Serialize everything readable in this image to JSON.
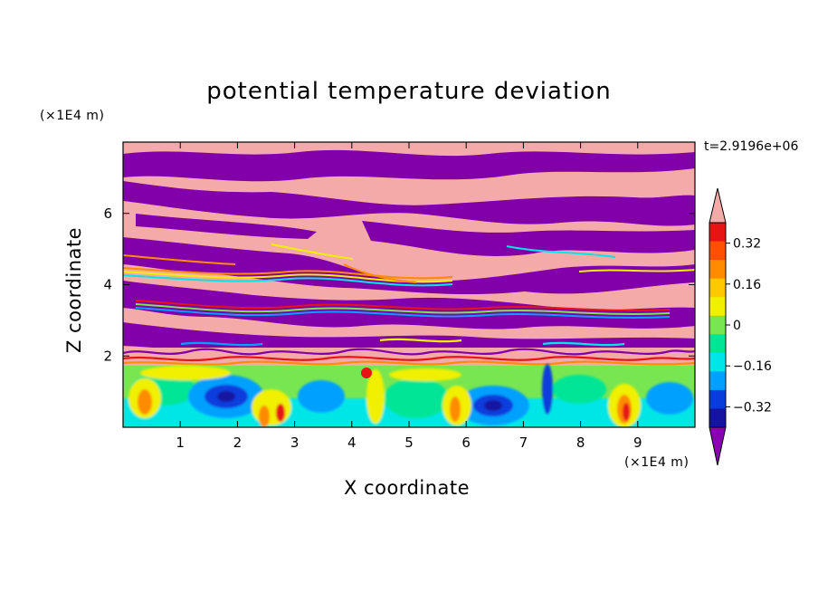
{
  "chart_data": {
    "type": "heatmap",
    "title": "potential temperature deviation",
    "xlabel": "X coordinate",
    "ylabel": "Z coordinate",
    "x_unit": "(×1E4 m)",
    "y_unit": "(×1E4 m)",
    "time_label": "t=2.9196e+06",
    "xlim": [
      0,
      10
    ],
    "ylim": [
      0,
      8
    ],
    "xticks": [
      1,
      2,
      3,
      4,
      5,
      6,
      7,
      8,
      9
    ],
    "yticks": [
      2,
      4,
      6
    ],
    "colorbar": {
      "levels": [
        -0.48,
        -0.4,
        -0.32,
        -0.24,
        -0.16,
        -0.08,
        0,
        0.08,
        0.16,
        0.24,
        0.32,
        0.4,
        0.48
      ],
      "colors": [
        "#8c00b4",
        "#1414a0",
        "#0a3cdc",
        "#00a0ff",
        "#00e6e6",
        "#00e696",
        "#78e650",
        "#f0f000",
        "#ffc800",
        "#ff8c00",
        "#ff5000",
        "#e61414",
        "#f5aaaa"
      ],
      "tick_labels": [
        "0.32",
        "0.16",
        "0",
        "−0.16",
        "−0.32"
      ],
      "tick_values": [
        0.32,
        0.16,
        0,
        -0.16,
        -0.32
      ],
      "extend": "both"
    },
    "colors": {
      "pink": "#f5aaaa",
      "purple": "#8200aa",
      "cyan": "#00e6e6",
      "green": "#78e650",
      "yellow": "#f0f000",
      "orange": "#ff8c00",
      "red": "#e61414",
      "blue": "#1414a0",
      "lightblue": "#00a0ff"
    }
  }
}
